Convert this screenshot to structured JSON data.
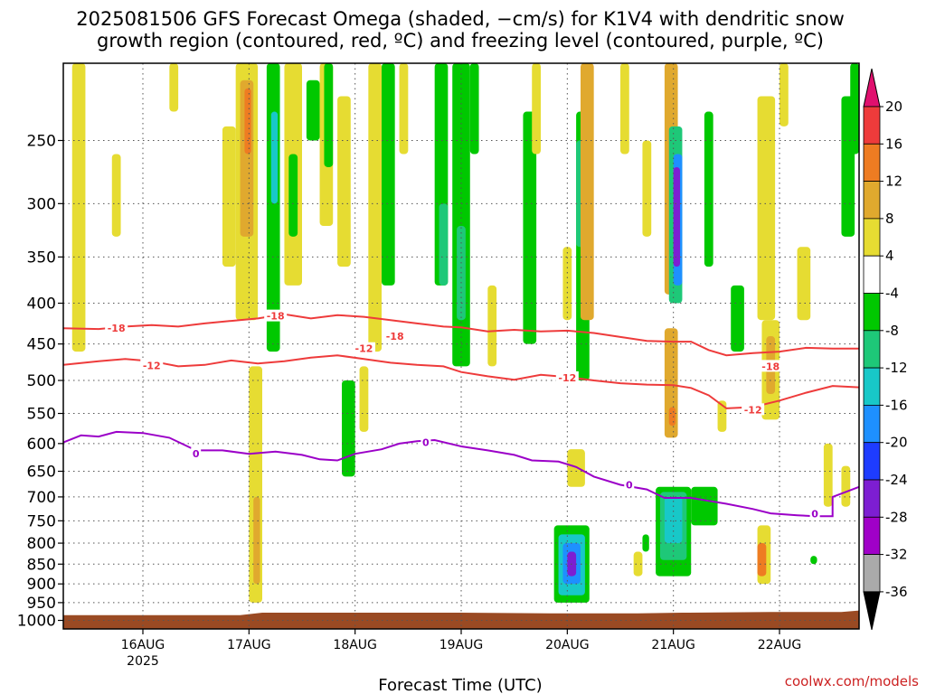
{
  "title_line1": "2025081506 GFS Forecast Omega (shaded, −cm/s) for K1V4 with dendritic snow",
  "title_line2": "growth region (contoured, red, ºC) and freezing level (contoured, purple, ºC)",
  "x_axis_label": "Forecast Time (UTC)",
  "credit": "coolwx.com/models",
  "colors": {
    "ground": "#9a4a23",
    "snow_growth_contour": "#ee3b3b",
    "freezing_level_contour": "#9b00c8",
    "gridline": "#555555"
  },
  "chart_data": {
    "type": "heatmap",
    "title": "2025081506 GFS Forecast Omega (shaded, −cm/s) for K1V4 with dendritic snow growth region (contoured, red, ºC) and freezing level (contoured, purple, ºC)",
    "xlabel": "Forecast Time (UTC)",
    "ylabel": "",
    "y_scale": "log (pressure, hPa), reversed",
    "x_ticks": [
      {
        "label": "16AUG",
        "sub": "2025",
        "hours": 18
      },
      {
        "label": "17AUG",
        "sub": "",
        "hours": 42
      },
      {
        "label": "18AUG",
        "sub": "",
        "hours": 66
      },
      {
        "label": "19AUG",
        "sub": "",
        "hours": 90
      },
      {
        "label": "20AUG",
        "sub": "",
        "hours": 114
      },
      {
        "label": "21AUG",
        "sub": "",
        "hours": 138
      },
      {
        "label": "22AUG",
        "sub": "",
        "hours": 162
      }
    ],
    "x_range_hours": [
      0,
      180
    ],
    "y_ticks": [
      250,
      300,
      350,
      400,
      450,
      500,
      550,
      600,
      650,
      700,
      750,
      800,
      850,
      900,
      950,
      1000
    ],
    "y_range": [
      200,
      1025
    ],
    "grid": true,
    "colorbar": {
      "labels": [
        "20",
        "16",
        "12",
        "8",
        "4",
        "-4",
        "-8",
        "-12",
        "-16",
        "-20",
        "-24",
        "-28",
        "-32",
        "-36"
      ],
      "bins": [
        {
          "lo": 20,
          "hi": 24,
          "color": "#e0106e"
        },
        {
          "lo": 16,
          "hi": 20,
          "color": "#ee3b3b"
        },
        {
          "lo": 12,
          "hi": 16,
          "color": "#ee7c22"
        },
        {
          "lo": 8,
          "hi": 12,
          "color": "#e0a92e"
        },
        {
          "lo": 4,
          "hi": 8,
          "color": "#e6dc32"
        },
        {
          "lo": -4,
          "hi": 4,
          "color": "#ffffff"
        },
        {
          "lo": -8,
          "hi": -4,
          "color": "#00c800"
        },
        {
          "lo": -12,
          "hi": -8,
          "color": "#1ec878"
        },
        {
          "lo": -16,
          "hi": -12,
          "color": "#18c8c8"
        },
        {
          "lo": -20,
          "hi": -16,
          "color": "#1e90ff"
        },
        {
          "lo": -24,
          "hi": -20,
          "color": "#1e3cff"
        },
        {
          "lo": -28,
          "hi": -24,
          "color": "#7d1ed2"
        },
        {
          "lo": -32,
          "hi": -28,
          "color": "#a000c8"
        },
        {
          "lo": -36,
          "hi": -32,
          "color": "#aaaaaa"
        },
        {
          "lo": -40,
          "hi": -36,
          "color": "#000000"
        }
      ]
    },
    "contours": [
      {
        "label": "-18",
        "color": "#ee3b3b",
        "label_points": [
          [
            12,
            430
          ],
          [
            48,
            415
          ],
          [
            75,
            440
          ],
          [
            160,
            480
          ]
        ],
        "points": [
          [
            0,
            430
          ],
          [
            8,
            431
          ],
          [
            14,
            428
          ],
          [
            20,
            426
          ],
          [
            26,
            428
          ],
          [
            32,
            424
          ],
          [
            38,
            421
          ],
          [
            44,
            418
          ],
          [
            50,
            413
          ],
          [
            56,
            418
          ],
          [
            62,
            414
          ],
          [
            68,
            416
          ],
          [
            74,
            420
          ],
          [
            80,
            424
          ],
          [
            86,
            428
          ],
          [
            90,
            429
          ],
          [
            96,
            434
          ],
          [
            102,
            432
          ],
          [
            108,
            434
          ],
          [
            114,
            433
          ],
          [
            120,
            436
          ],
          [
            126,
            441
          ],
          [
            132,
            446
          ],
          [
            138,
            447
          ],
          [
            142,
            447
          ],
          [
            146,
            458
          ],
          [
            150,
            465
          ],
          [
            156,
            462
          ],
          [
            162,
            460
          ],
          [
            168,
            455
          ],
          [
            174,
            456
          ],
          [
            180,
            456
          ]
        ]
      },
      {
        "label": "-12",
        "color": "#ee3b3b",
        "label_points": [
          [
            20,
            479
          ],
          [
            68,
            456
          ],
          [
            114,
            496
          ],
          [
            156,
            544
          ]
        ],
        "points": [
          [
            0,
            478
          ],
          [
            8,
            473
          ],
          [
            14,
            470
          ],
          [
            20,
            473
          ],
          [
            26,
            480
          ],
          [
            32,
            478
          ],
          [
            38,
            472
          ],
          [
            44,
            476
          ],
          [
            50,
            473
          ],
          [
            56,
            468
          ],
          [
            62,
            465
          ],
          [
            68,
            470
          ],
          [
            74,
            475
          ],
          [
            80,
            478
          ],
          [
            86,
            480
          ],
          [
            90,
            488
          ],
          [
            96,
            494
          ],
          [
            102,
            499
          ],
          [
            108,
            492
          ],
          [
            114,
            495
          ],
          [
            120,
            500
          ],
          [
            126,
            504
          ],
          [
            132,
            506
          ],
          [
            138,
            507
          ],
          [
            142,
            511
          ],
          [
            146,
            522
          ],
          [
            150,
            542
          ],
          [
            156,
            540
          ],
          [
            162,
            530
          ],
          [
            168,
            518
          ],
          [
            174,
            508
          ],
          [
            180,
            510
          ]
        ]
      },
      {
        "label": "0",
        "color": "#9b00c8",
        "label_points": [
          [
            30,
            618
          ],
          [
            82,
            598
          ],
          [
            128,
            676
          ],
          [
            170,
            735
          ]
        ],
        "points": [
          [
            0,
            598
          ],
          [
            4,
            586
          ],
          [
            8,
            588
          ],
          [
            12,
            580
          ],
          [
            18,
            582
          ],
          [
            24,
            590
          ],
          [
            30,
            612
          ],
          [
            36,
            612
          ],
          [
            42,
            618
          ],
          [
            48,
            614
          ],
          [
            54,
            620
          ],
          [
            58,
            628
          ],
          [
            62,
            630
          ],
          [
            66,
            618
          ],
          [
            72,
            610
          ],
          [
            76,
            600
          ],
          [
            80,
            596
          ],
          [
            84,
            594
          ],
          [
            90,
            605
          ],
          [
            96,
            612
          ],
          [
            102,
            620
          ],
          [
            106,
            630
          ],
          [
            112,
            632
          ],
          [
            116,
            642
          ],
          [
            120,
            660
          ],
          [
            126,
            676
          ],
          [
            132,
            685
          ],
          [
            136,
            702
          ],
          [
            142,
            702
          ],
          [
            150,
            714
          ],
          [
            156,
            725
          ],
          [
            160,
            734
          ],
          [
            166,
            738
          ],
          [
            170,
            740
          ],
          [
            174,
            740
          ],
          [
            174,
            700
          ],
          [
            180,
            680
          ]
        ]
      }
    ],
    "omega_cells": [
      {
        "x": 2,
        "w": 3,
        "ptop": 200,
        "pbot": 460,
        "v": 6
      },
      {
        "x": 11,
        "w": 2,
        "ptop": 260,
        "pbot": 330,
        "v": 6
      },
      {
        "x": 24,
        "w": 2,
        "ptop": 200,
        "pbot": 230,
        "v": 6
      },
      {
        "x": 36,
        "w": 3,
        "ptop": 240,
        "pbot": 360,
        "v": 6
      },
      {
        "x": 39,
        "w": 5,
        "ptop": 200,
        "pbot": 420,
        "v": 6
      },
      {
        "x": 40,
        "w": 3,
        "ptop": 210,
        "pbot": 330,
        "v": 10
      },
      {
        "x": 41,
        "w": 1.5,
        "ptop": 215,
        "pbot": 260,
        "v": 13
      },
      {
        "x": 42,
        "w": 3,
        "ptop": 480,
        "pbot": 950,
        "v": 6
      },
      {
        "x": 43,
        "w": 1.5,
        "ptop": 700,
        "pbot": 900,
        "v": 10
      },
      {
        "x": 46,
        "w": 3,
        "ptop": 200,
        "pbot": 460,
        "v": -6
      },
      {
        "x": 47,
        "w": 1.5,
        "ptop": 230,
        "pbot": 300,
        "v": -14
      },
      {
        "x": 50,
        "w": 4,
        "ptop": 200,
        "pbot": 380,
        "v": 6
      },
      {
        "x": 51,
        "w": 2,
        "ptop": 260,
        "pbot": 330,
        "v": -6
      },
      {
        "x": 55,
        "w": 3,
        "ptop": 210,
        "pbot": 250,
        "v": -6
      },
      {
        "x": 58,
        "w": 3,
        "ptop": 200,
        "pbot": 320,
        "v": 6
      },
      {
        "x": 59,
        "w": 2,
        "ptop": 200,
        "pbot": 270,
        "v": -6
      },
      {
        "x": 62,
        "w": 3,
        "ptop": 220,
        "pbot": 360,
        "v": 6
      },
      {
        "x": 63,
        "w": 3,
        "ptop": 500,
        "pbot": 660,
        "v": -6
      },
      {
        "x": 67,
        "w": 2,
        "ptop": 480,
        "pbot": 580,
        "v": 6
      },
      {
        "x": 69,
        "w": 3,
        "ptop": 200,
        "pbot": 460,
        "v": 6
      },
      {
        "x": 72,
        "w": 3,
        "ptop": 200,
        "pbot": 380,
        "v": -6
      },
      {
        "x": 76,
        "w": 2,
        "ptop": 200,
        "pbot": 260,
        "v": 6
      },
      {
        "x": 84,
        "w": 3,
        "ptop": 200,
        "pbot": 380,
        "v": -6
      },
      {
        "x": 85,
        "w": 2,
        "ptop": 300,
        "pbot": 380,
        "v": -10
      },
      {
        "x": 88,
        "w": 4,
        "ptop": 200,
        "pbot": 480,
        "v": -6
      },
      {
        "x": 89,
        "w": 2,
        "ptop": 320,
        "pbot": 420,
        "v": -12
      },
      {
        "x": 92,
        "w": 2,
        "ptop": 200,
        "pbot": 260,
        "v": -6
      },
      {
        "x": 96,
        "w": 2,
        "ptop": 380,
        "pbot": 480,
        "v": 6
      },
      {
        "x": 104,
        "w": 3,
        "ptop": 230,
        "pbot": 450,
        "v": -6
      },
      {
        "x": 106,
        "w": 2,
        "ptop": 200,
        "pbot": 260,
        "v": 6
      },
      {
        "x": 113,
        "w": 2,
        "ptop": 340,
        "pbot": 420,
        "v": 6
      },
      {
        "x": 114,
        "w": 4,
        "ptop": 610,
        "pbot": 680,
        "v": 6
      },
      {
        "x": 116,
        "w": 3,
        "ptop": 230,
        "pbot": 500,
        "v": -6
      },
      {
        "x": 116,
        "w": 2,
        "ptop": 250,
        "pbot": 340,
        "v": -10
      },
      {
        "x": 117,
        "w": 3,
        "ptop": 200,
        "pbot": 420,
        "v": 10
      },
      {
        "x": 111,
        "w": 8,
        "ptop": 760,
        "pbot": 950,
        "v": -8
      },
      {
        "x": 112,
        "w": 6,
        "ptop": 780,
        "pbot": 930,
        "v": -14
      },
      {
        "x": 113,
        "w": 4,
        "ptop": 800,
        "pbot": 900,
        "v": -18
      },
      {
        "x": 114,
        "w": 2,
        "ptop": 820,
        "pbot": 880,
        "v": -26
      },
      {
        "x": 126,
        "w": 2,
        "ptop": 200,
        "pbot": 260,
        "v": 6
      },
      {
        "x": 131,
        "w": 2,
        "ptop": 250,
        "pbot": 330,
        "v": 6
      },
      {
        "x": 136,
        "w": 3,
        "ptop": 200,
        "pbot": 390,
        "v": 10
      },
      {
        "x": 137,
        "w": 3,
        "ptop": 240,
        "pbot": 400,
        "v": -10
      },
      {
        "x": 138,
        "w": 2,
        "ptop": 260,
        "pbot": 380,
        "v": -18
      },
      {
        "x": 138,
        "w": 1.5,
        "ptop": 270,
        "pbot": 360,
        "v": -26
      },
      {
        "x": 136,
        "w": 3,
        "ptop": 430,
        "pbot": 590,
        "v": 10
      },
      {
        "x": 137,
        "w": 1.5,
        "ptop": 540,
        "pbot": 570,
        "v": 14
      },
      {
        "x": 134,
        "w": 8,
        "ptop": 680,
        "pbot": 880,
        "v": -6
      },
      {
        "x": 135,
        "w": 6,
        "ptop": 690,
        "pbot": 840,
        "v": -12
      },
      {
        "x": 136,
        "w": 4,
        "ptop": 700,
        "pbot": 800,
        "v": -16
      },
      {
        "x": 142,
        "w": 6,
        "ptop": 680,
        "pbot": 760,
        "v": -8
      },
      {
        "x": 145,
        "w": 2,
        "ptop": 230,
        "pbot": 360,
        "v": -6
      },
      {
        "x": 151,
        "w": 3,
        "ptop": 380,
        "pbot": 460,
        "v": -6
      },
      {
        "x": 148,
        "w": 2,
        "ptop": 530,
        "pbot": 580,
        "v": 6
      },
      {
        "x": 157,
        "w": 4,
        "ptop": 220,
        "pbot": 420,
        "v": 6
      },
      {
        "x": 158,
        "w": 4,
        "ptop": 420,
        "pbot": 560,
        "v": 6
      },
      {
        "x": 159,
        "w": 2,
        "ptop": 440,
        "pbot": 520,
        "v": 10
      },
      {
        "x": 157,
        "w": 3,
        "ptop": 760,
        "pbot": 900,
        "v": 6
      },
      {
        "x": 157,
        "w": 2,
        "ptop": 800,
        "pbot": 880,
        "v": 12
      },
      {
        "x": 162,
        "w": 2,
        "ptop": 200,
        "pbot": 240,
        "v": 6
      },
      {
        "x": 166,
        "w": 3,
        "ptop": 340,
        "pbot": 420,
        "v": 6
      },
      {
        "x": 172,
        "w": 2,
        "ptop": 600,
        "pbot": 720,
        "v": 6
      },
      {
        "x": 176,
        "w": 3,
        "ptop": 220,
        "pbot": 330,
        "v": -6
      },
      {
        "x": 178,
        "w": 2,
        "ptop": 200,
        "pbot": 260,
        "v": -8
      },
      {
        "x": 176,
        "w": 2,
        "ptop": 640,
        "pbot": 720,
        "v": 6
      },
      {
        "x": 169,
        "w": 1.5,
        "ptop": 830,
        "pbot": 850,
        "v": -6
      },
      {
        "x": 129,
        "w": 2,
        "ptop": 820,
        "pbot": 880,
        "v": 6
      },
      {
        "x": 131,
        "w": 1.5,
        "ptop": 780,
        "pbot": 820,
        "v": -6
      }
    ],
    "ground": {
      "color": "#9a4a23",
      "points": [
        [
          0,
          985
        ],
        [
          40,
          985
        ],
        [
          45,
          978
        ],
        [
          90,
          978
        ],
        [
          110,
          980
        ],
        [
          130,
          980
        ],
        [
          140,
          978
        ],
        [
          160,
          976
        ],
        [
          176,
          976
        ],
        [
          180,
          972
        ]
      ]
    }
  }
}
